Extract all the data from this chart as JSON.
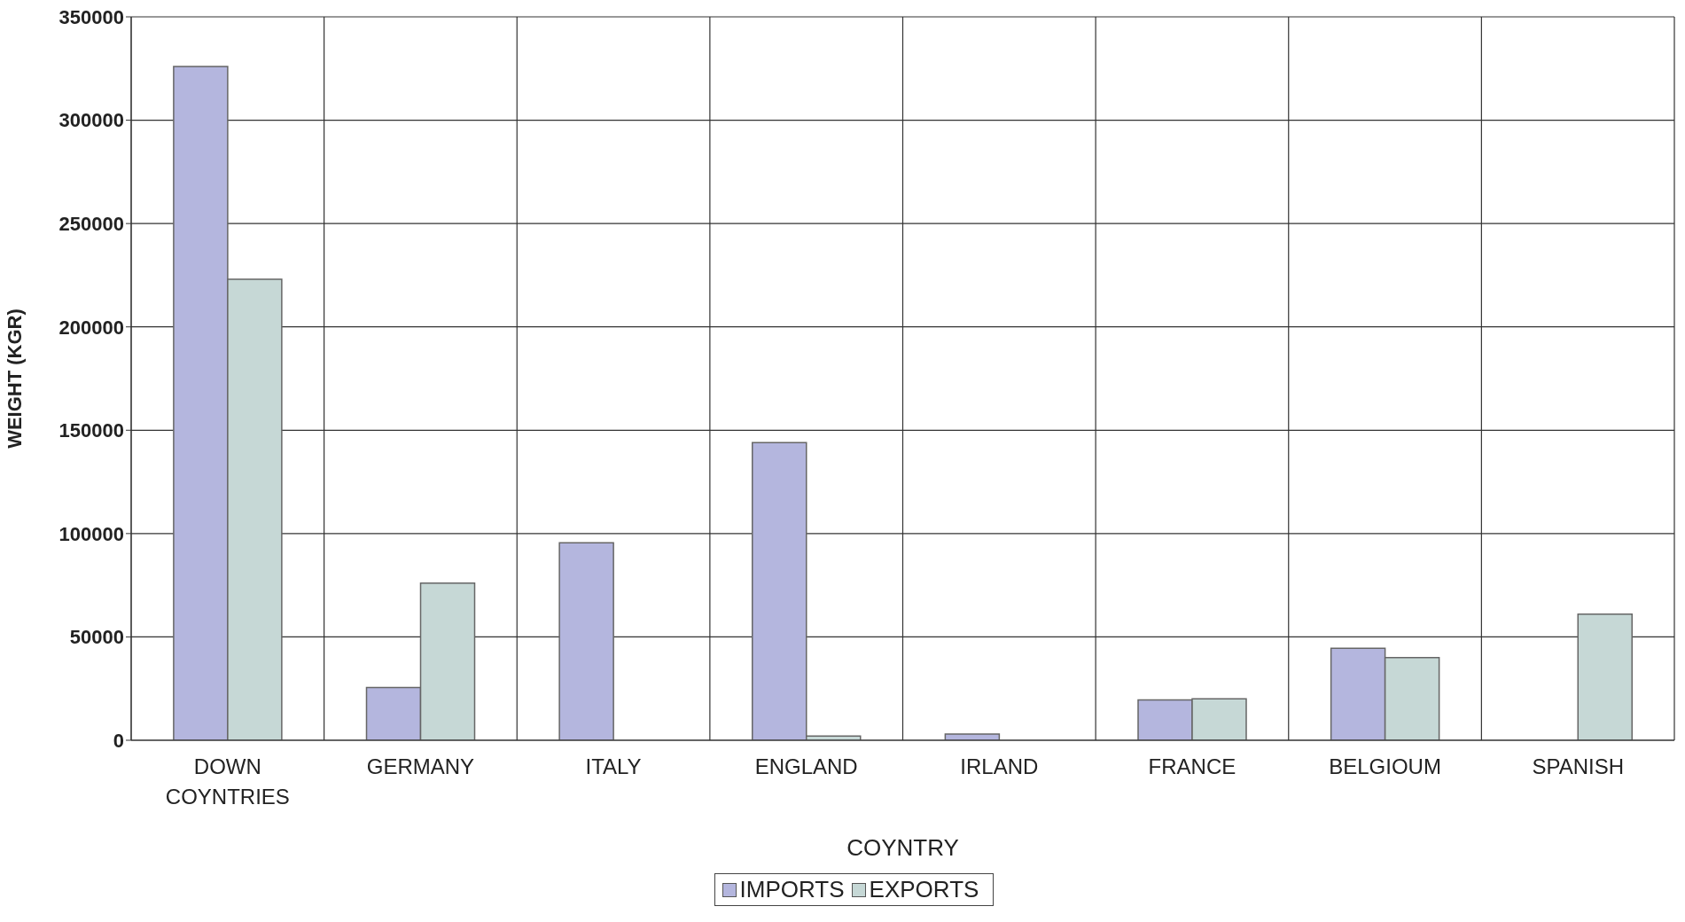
{
  "chart_data": {
    "type": "bar",
    "xlabel": "COYNTRY",
    "ylabel": "WEIGHT (KGR)",
    "categories": [
      "DOWN COYNTRIES",
      "GERMANY",
      "ITALY",
      "ENGLAND",
      "IRLAND",
      "FRANCE",
      "BELGIOUM",
      "SPANISH"
    ],
    "series": [
      {
        "name": "IMPORTS",
        "color": "#b4b6de",
        "values": [
          326000,
          25500,
          95500,
          144000,
          3000,
          19500,
          44500,
          null
        ]
      },
      {
        "name": "EXPORTS",
        "color": "#c6d8d6",
        "values": [
          223000,
          76000,
          null,
          2000,
          null,
          20000,
          40000,
          61000
        ]
      }
    ],
    "ylim": [
      0,
      350000
    ],
    "yticks": [
      0,
      50000,
      100000,
      150000,
      200000,
      250000,
      300000,
      350000
    ],
    "grid": true,
    "legend": "bottom"
  }
}
